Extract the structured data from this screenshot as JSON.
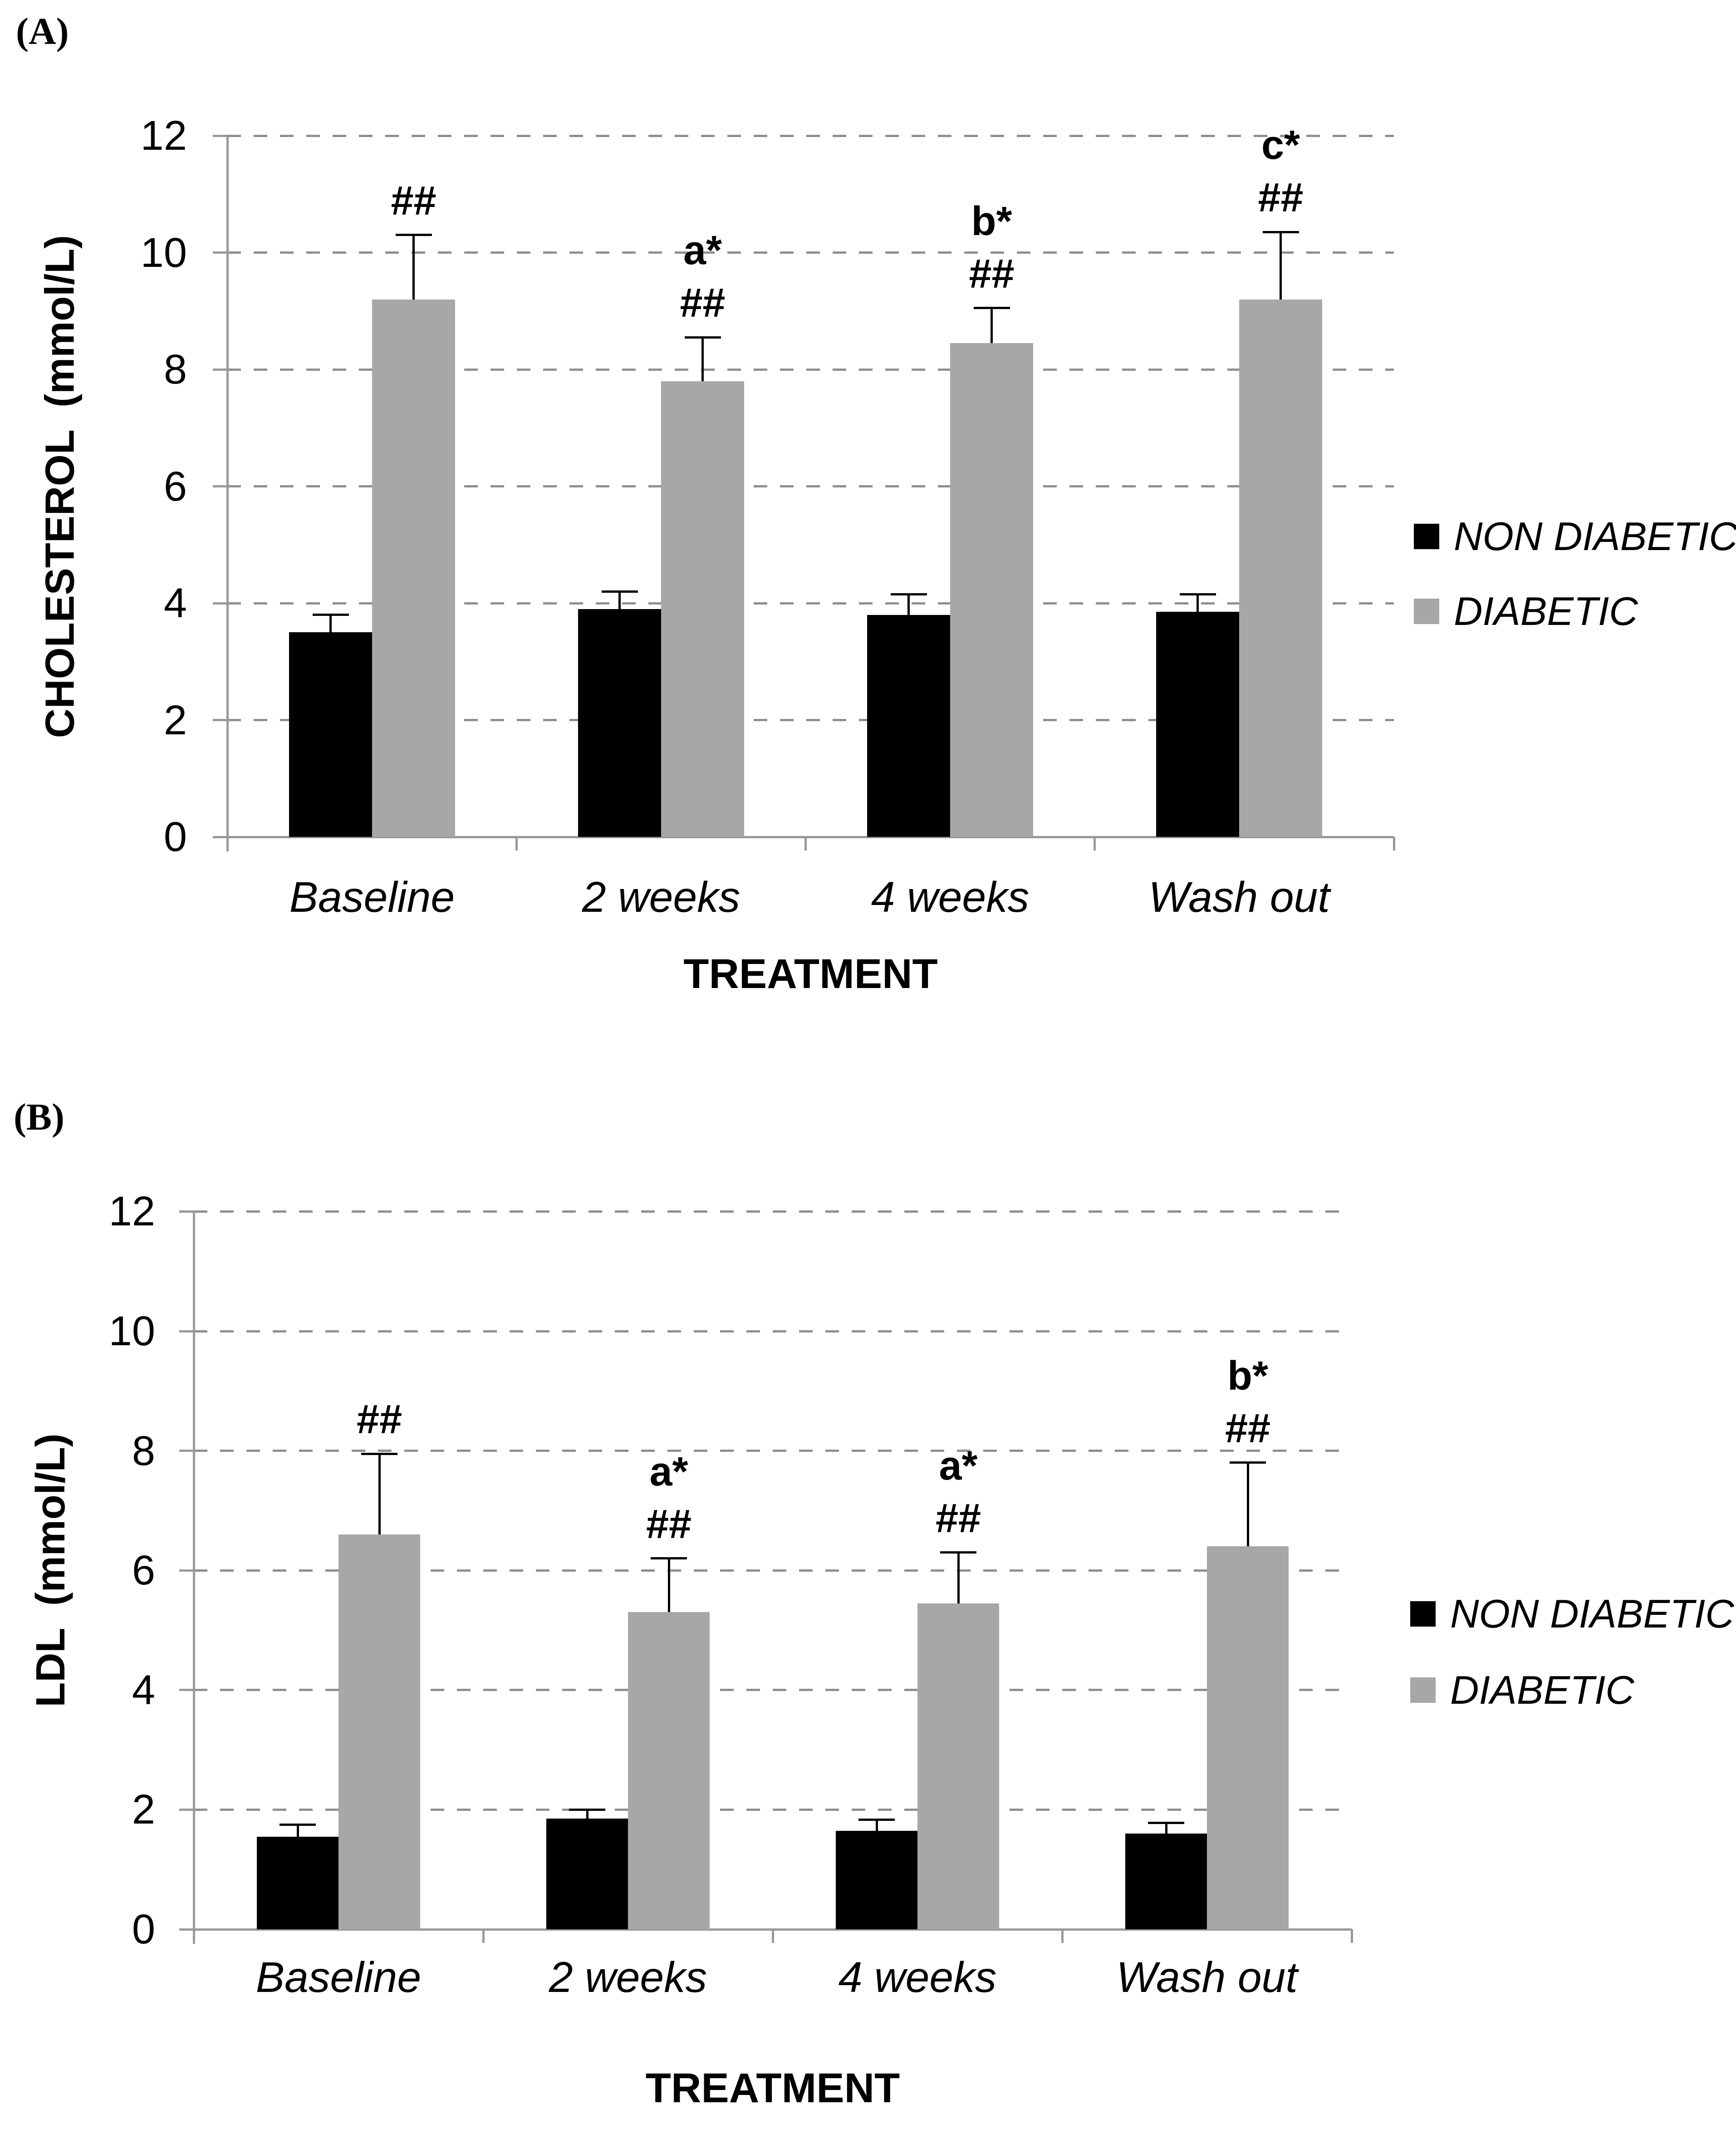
{
  "figure": {
    "panels": [
      "(A)",
      "(B)"
    ]
  },
  "colors": {
    "non_diabetic": "#000000",
    "diabetic": "#a7a7a7",
    "gridline": "#8f8f8f",
    "axis": "#999999",
    "error_bar": "#000000",
    "background": "#ffffff"
  },
  "legend": {
    "items": [
      {
        "label": "NON DIABETIC",
        "color": "#000000"
      },
      {
        "label": "DIABETIC",
        "color": "#a7a7a7"
      }
    ]
  },
  "chart_data": [
    {
      "id": "panel-a",
      "panel_label": "(A)",
      "type": "bar",
      "title": "",
      "xlabel": "TREATMENT",
      "ylabel": "CHOLESTEROL  (mmol/L)",
      "categories": [
        "Baseline",
        "2 weeks",
        "4 weeks",
        "Wash out"
      ],
      "series": [
        {
          "name": "NON DIABETIC",
          "color": "#000000",
          "values": [
            3.5,
            3.9,
            3.8,
            3.85
          ],
          "errors": [
            0.3,
            0.3,
            0.35,
            0.3
          ]
        },
        {
          "name": "DIABETIC",
          "color": "#a7a7a7",
          "values": [
            9.2,
            7.8,
            8.45,
            9.2
          ],
          "errors": [
            1.1,
            0.75,
            0.6,
            1.15
          ]
        }
      ],
      "annotations": [
        [
          "##"
        ],
        [
          "a*",
          "##"
        ],
        [
          "b*",
          "##"
        ],
        [
          "c*",
          "##"
        ]
      ],
      "ylim": [
        0,
        12
      ],
      "ytick_step": 2,
      "grid": "dashed-horizontal",
      "legend_position": "right"
    },
    {
      "id": "panel-b",
      "panel_label": "(B)",
      "type": "bar",
      "title": "",
      "xlabel": "TREATMENT",
      "ylabel": "LDL  (mmol/L)",
      "categories": [
        "Baseline",
        "2 weeks",
        "4 weeks",
        "Wash out"
      ],
      "series": [
        {
          "name": "NON DIABETIC",
          "color": "#000000",
          "values": [
            1.55,
            1.85,
            1.65,
            1.6
          ],
          "errors": [
            0.2,
            0.15,
            0.18,
            0.18
          ]
        },
        {
          "name": "DIABETIC",
          "color": "#a7a7a7",
          "values": [
            6.6,
            5.3,
            5.45,
            6.4
          ],
          "errors": [
            1.35,
            0.9,
            0.85,
            1.4
          ]
        }
      ],
      "annotations": [
        [
          "##"
        ],
        [
          "a*",
          "##"
        ],
        [
          "a*",
          "##"
        ],
        [
          "b*",
          "##"
        ]
      ],
      "ylim": [
        0,
        12
      ],
      "ytick_step": 2,
      "grid": "dashed-horizontal",
      "legend_position": "right"
    }
  ]
}
